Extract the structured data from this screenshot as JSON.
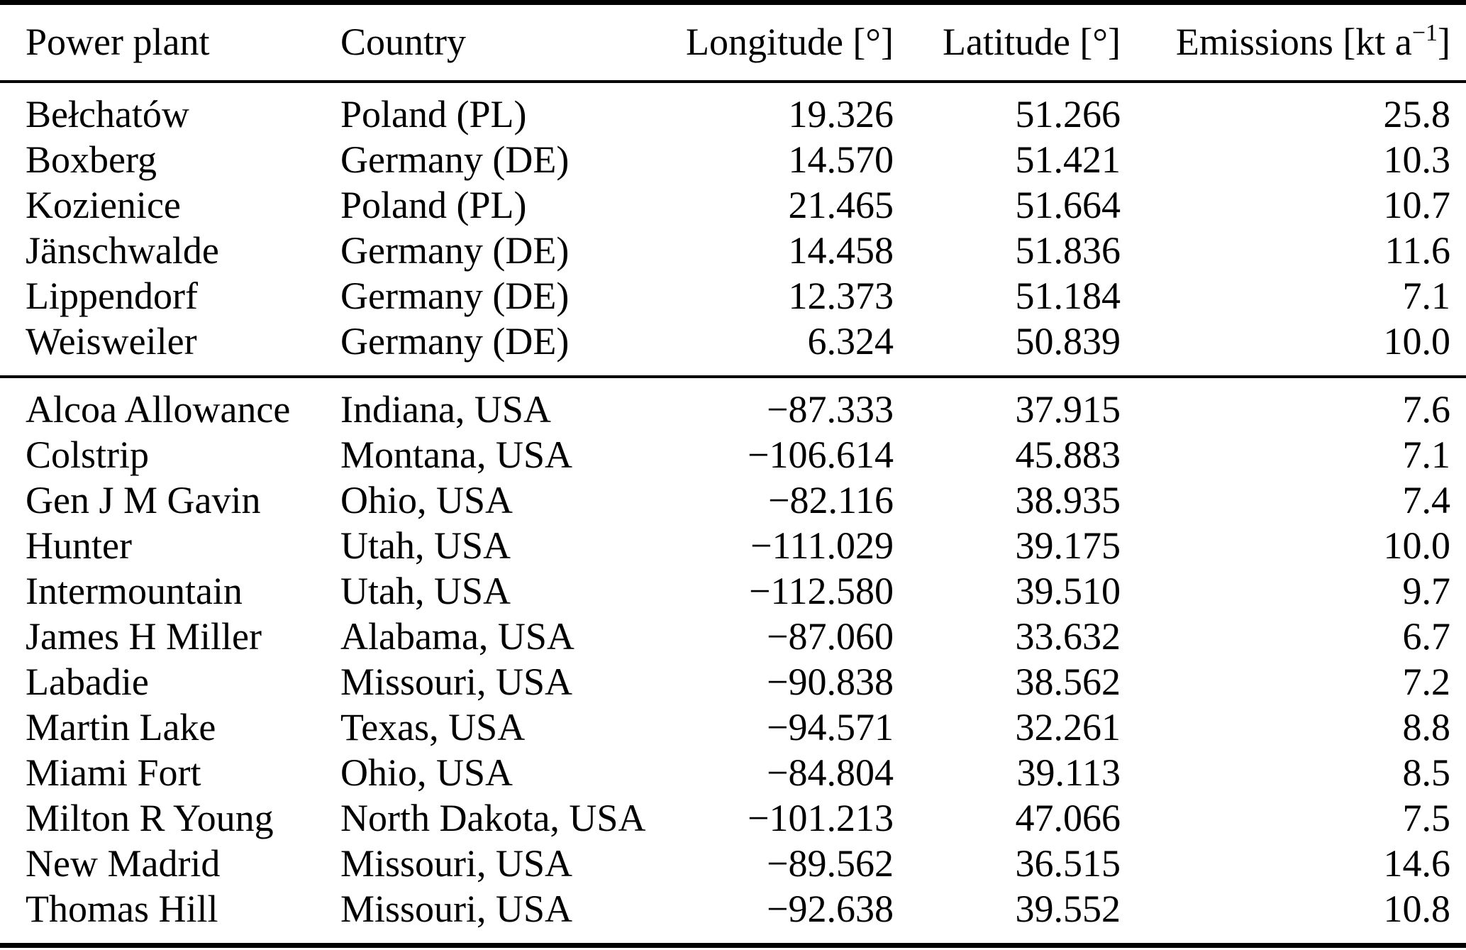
{
  "table": {
    "headers": [
      {
        "text": "Power plant"
      },
      {
        "text": "Country"
      },
      {
        "text": "Longitude [°]"
      },
      {
        "text": "Latitude [°]"
      },
      {
        "text": "Emissions [kt a",
        "sup": "−1",
        "tail": "]"
      }
    ],
    "groups": [
      [
        {
          "plant": "Bełchatów",
          "country": "Poland (PL)",
          "longitude": "19.326",
          "latitude": "51.266",
          "emissions": "25.8"
        },
        {
          "plant": "Boxberg",
          "country": "Germany (DE)",
          "longitude": "14.570",
          "latitude": "51.421",
          "emissions": "10.3"
        },
        {
          "plant": "Kozienice",
          "country": "Poland (PL)",
          "longitude": "21.465",
          "latitude": "51.664",
          "emissions": "10.7"
        },
        {
          "plant": "Jänschwalde",
          "country": "Germany (DE)",
          "longitude": "14.458",
          "latitude": "51.836",
          "emissions": "11.6"
        },
        {
          "plant": "Lippendorf",
          "country": "Germany (DE)",
          "longitude": "12.373",
          "latitude": "51.184",
          "emissions": "7.1"
        },
        {
          "plant": "Weisweiler",
          "country": "Germany (DE)",
          "longitude": "6.324",
          "latitude": "50.839",
          "emissions": "10.0"
        }
      ],
      [
        {
          "plant": "Alcoa Allowance",
          "country": "Indiana, USA",
          "longitude": "−87.333",
          "latitude": "37.915",
          "emissions": "7.6"
        },
        {
          "plant": "Colstrip",
          "country": "Montana, USA",
          "longitude": "−106.614",
          "latitude": "45.883",
          "emissions": "7.1"
        },
        {
          "plant": "Gen J M Gavin",
          "country": "Ohio, USA",
          "longitude": "−82.116",
          "latitude": "38.935",
          "emissions": "7.4"
        },
        {
          "plant": "Hunter",
          "country": "Utah, USA",
          "longitude": "−111.029",
          "latitude": "39.175",
          "emissions": "10.0"
        },
        {
          "plant": "Intermountain",
          "country": "Utah, USA",
          "longitude": "−112.580",
          "latitude": "39.510",
          "emissions": "9.7"
        },
        {
          "plant": "James H Miller",
          "country": "Alabama, USA",
          "longitude": "−87.060",
          "latitude": "33.632",
          "emissions": "6.7"
        },
        {
          "plant": "Labadie",
          "country": "Missouri, USA",
          "longitude": "−90.838",
          "latitude": "38.562",
          "emissions": "7.2"
        },
        {
          "plant": "Martin Lake",
          "country": "Texas, USA",
          "longitude": "−94.571",
          "latitude": "32.261",
          "emissions": "8.8"
        },
        {
          "plant": "Miami Fort",
          "country": "Ohio, USA",
          "longitude": "−84.804",
          "latitude": "39.113",
          "emissions": "8.5"
        },
        {
          "plant": "Milton R Young",
          "country": "North Dakota, USA",
          "longitude": "−101.213",
          "latitude": "47.066",
          "emissions": "7.5"
        },
        {
          "plant": "New Madrid",
          "country": "Missouri, USA",
          "longitude": "−89.562",
          "latitude": "36.515",
          "emissions": "14.6"
        },
        {
          "plant": "Thomas Hill",
          "country": "Missouri, USA",
          "longitude": "−92.638",
          "latitude": "39.552",
          "emissions": "10.8"
        }
      ]
    ]
  }
}
